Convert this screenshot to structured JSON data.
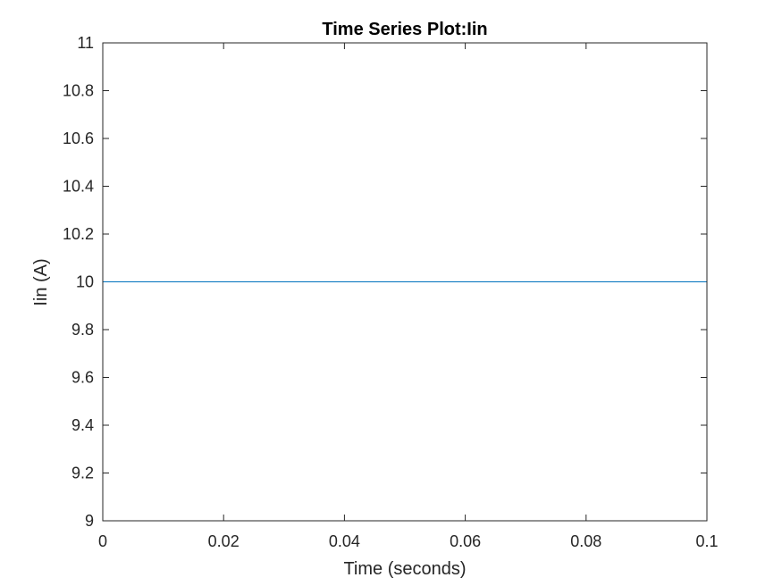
{
  "chart_data": {
    "type": "line",
    "title": "Time Series Plot:Iin",
    "xlabel": "Time (seconds)",
    "ylabel": "Iin (A)",
    "xlim": [
      0,
      0.1
    ],
    "ylim": [
      9,
      11
    ],
    "xticks": [
      0,
      0.02,
      0.04,
      0.06,
      0.08,
      0.1
    ],
    "xtick_labels": [
      "0",
      "0.02",
      "0.04",
      "0.06",
      "0.08",
      "0.1"
    ],
    "yticks": [
      9,
      9.2,
      9.4,
      9.6,
      9.8,
      10,
      10.2,
      10.4,
      10.6,
      10.8,
      11
    ],
    "ytick_labels": [
      "9",
      "9.2",
      "9.4",
      "9.6",
      "9.8",
      "10",
      "10.2",
      "10.4",
      "10.6",
      "10.8",
      "11"
    ],
    "grid": false,
    "series": [
      {
        "x": [
          0,
          0.1
        ],
        "y": [
          10,
          10
        ],
        "color": "#0072BD"
      }
    ]
  }
}
